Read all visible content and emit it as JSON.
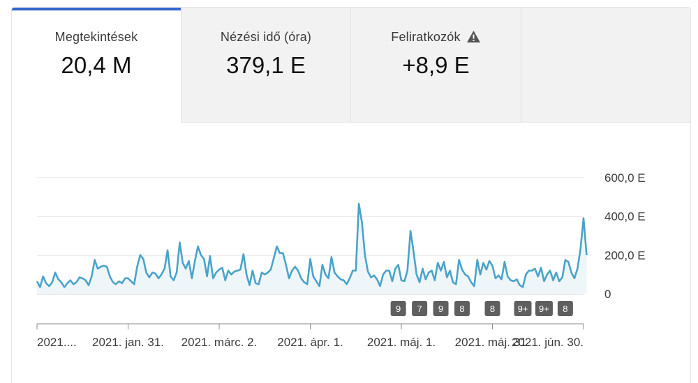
{
  "tabs": [
    {
      "label": "Megtekintések",
      "value": "20,4 M",
      "active": true,
      "warning": false
    },
    {
      "label": "Nézési idő (óra)",
      "value": "379,1 E",
      "active": false,
      "warning": false
    },
    {
      "label": "Feliratkozók",
      "value": "+8,9 E",
      "active": false,
      "warning": true
    },
    {
      "label": "",
      "value": "",
      "active": false,
      "warning": false
    }
  ],
  "colors": {
    "accent": "#3366cc",
    "line": "#4aa3c9",
    "fill": "#eef6fa",
    "badge": "#5f5f5f"
  },
  "icons": {
    "warning": "warning-triangle-icon"
  },
  "chart_data": {
    "type": "area",
    "title": "",
    "xlabel": "",
    "ylabel": "",
    "ylim": [
      0,
      600000
    ],
    "y_ticks": [
      {
        "value": 0,
        "label": "0"
      },
      {
        "value": 200000,
        "label": "200,0 E"
      },
      {
        "value": 400000,
        "label": "400,0 E"
      },
      {
        "value": 600000,
        "label": "600,0 E"
      }
    ],
    "x_range": [
      0,
      180
    ],
    "x_ticks": [
      {
        "x": 0,
        "label": "2021...."
      },
      {
        "x": 30,
        "label": "2021. jan. 31."
      },
      {
        "x": 60,
        "label": "2021. márc. 2."
      },
      {
        "x": 90,
        "label": "2021. ápr. 1."
      },
      {
        "x": 120,
        "label": "2021. máj. 1."
      },
      {
        "x": 150,
        "label": "2021. máj. 31."
      },
      {
        "x": 180,
        "label": "2021. jún. 30."
      }
    ],
    "grid": true,
    "series": [
      {
        "values": [
          65000,
          35000,
          90000,
          55000,
          40000,
          60000,
          110000,
          75000,
          60000,
          35000,
          55000,
          70000,
          50000,
          60000,
          85000,
          80000,
          70000,
          45000,
          90000,
          175000,
          130000,
          140000,
          145000,
          140000,
          90000,
          60000,
          50000,
          65000,
          55000,
          80000,
          80000,
          65000,
          50000,
          140000,
          200000,
          180000,
          110000,
          85000,
          110000,
          105000,
          80000,
          100000,
          130000,
          225000,
          90000,
          70000,
          110000,
          265000,
          160000,
          130000,
          170000,
          80000,
          170000,
          245000,
          200000,
          180000,
          90000,
          195000,
          80000,
          110000,
          125000,
          135000,
          70000,
          120000,
          100000,
          115000,
          120000,
          125000,
          205000,
          100000,
          45000,
          120000,
          55000,
          50000,
          110000,
          100000,
          110000,
          125000,
          185000,
          245000,
          210000,
          210000,
          150000,
          80000,
          120000,
          140000,
          120000,
          80000,
          60000,
          50000,
          180000,
          90000,
          65000,
          40000,
          150000,
          100000,
          80000,
          190000,
          110000,
          90000,
          75000,
          70000,
          50000,
          80000,
          120000,
          120000,
          465000,
          370000,
          200000,
          115000,
          85000,
          95000,
          75000,
          40000,
          100000,
          120000,
          120000,
          65000,
          130000,
          150000,
          70000,
          65000,
          120000,
          325000,
          220000,
          100000,
          60000,
          130000,
          75000,
          110000,
          120000,
          70000,
          160000,
          120000,
          165000,
          85000,
          120000,
          60000,
          50000,
          175000,
          125000,
          100000,
          90000,
          60000,
          40000,
          175000,
          100000,
          160000,
          125000,
          170000,
          145000,
          80000,
          95000,
          75000,
          165000,
          90000,
          70000,
          65000,
          75000,
          45000,
          35000,
          100000,
          120000,
          120000,
          130000,
          90000,
          135000,
          65000,
          100000,
          120000,
          70000,
          110000,
          65000,
          85000,
          175000,
          165000,
          110000,
          80000,
          130000,
          230000,
          390000,
          200000
        ]
      }
    ],
    "annotations": [
      {
        "x": 119,
        "label": "9"
      },
      {
        "x": 126,
        "label": "7"
      },
      {
        "x": 133,
        "label": "9"
      },
      {
        "x": 140,
        "label": "8"
      },
      {
        "x": 150,
        "label": "8"
      },
      {
        "x": 160,
        "label": "9+"
      },
      {
        "x": 167,
        "label": "9+"
      },
      {
        "x": 174,
        "label": "8"
      }
    ]
  }
}
